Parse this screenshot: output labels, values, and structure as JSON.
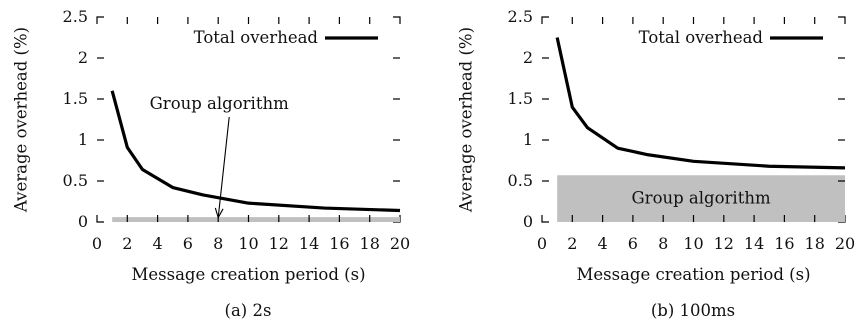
{
  "chart_data": [
    {
      "type": "line",
      "caption": "(a) 2s",
      "xlabel": "Message creation period (s)",
      "ylabel": "Average overhead (%)",
      "xlim": [
        0,
        20
      ],
      "ylim": [
        0,
        2.5
      ],
      "xticks": [
        "0",
        "2",
        "4",
        "6",
        "8",
        "10",
        "12",
        "14",
        "16",
        "18",
        "20"
      ],
      "yticks": [
        "0",
        "0.5",
        "1",
        "1.5",
        "2",
        "2.5"
      ],
      "legend": "top-right",
      "series": [
        {
          "name": "Total overhead",
          "style": "line",
          "x": [
            1,
            2,
            3,
            5,
            7,
            10,
            15,
            20
          ],
          "y": [
            1.6,
            0.91,
            0.64,
            0.42,
            0.33,
            0.23,
            0.17,
            0.14
          ]
        },
        {
          "name": "Group algorithm",
          "style": "area",
          "x": [
            1,
            2,
            3,
            5,
            7,
            10,
            15,
            20
          ],
          "y": [
            0.06,
            0.06,
            0.06,
            0.06,
            0.06,
            0.06,
            0.06,
            0.06
          ]
        }
      ],
      "annotation": {
        "text": "Group algorithm",
        "x": 8,
        "y": 0.03
      }
    },
    {
      "type": "line",
      "caption": "(b) 100ms",
      "xlabel": "Message creation period (s)",
      "ylabel": "Average overhead (%)",
      "xlim": [
        0,
        20
      ],
      "ylim": [
        0,
        2.5
      ],
      "xticks": [
        "0",
        "2",
        "4",
        "6",
        "8",
        "10",
        "12",
        "14",
        "16",
        "18",
        "20"
      ],
      "yticks": [
        "0",
        "0.5",
        "1",
        "1.5",
        "2",
        "2.5"
      ],
      "legend": "top-right",
      "series": [
        {
          "name": "Total overhead",
          "style": "line",
          "x": [
            1,
            2,
            3,
            5,
            7,
            10,
            15,
            20
          ],
          "y": [
            2.25,
            1.4,
            1.15,
            0.9,
            0.82,
            0.74,
            0.68,
            0.66
          ]
        },
        {
          "name": "Group algorithm",
          "style": "area",
          "x": [
            1,
            2,
            3,
            5,
            7,
            10,
            15,
            20
          ],
          "y": [
            0.57,
            0.57,
            0.57,
            0.57,
            0.57,
            0.57,
            0.57,
            0.57
          ]
        }
      ],
      "area_label": "Group algorithm"
    }
  ],
  "colors": {
    "line": "#000000",
    "area": "#c0c0c0"
  }
}
